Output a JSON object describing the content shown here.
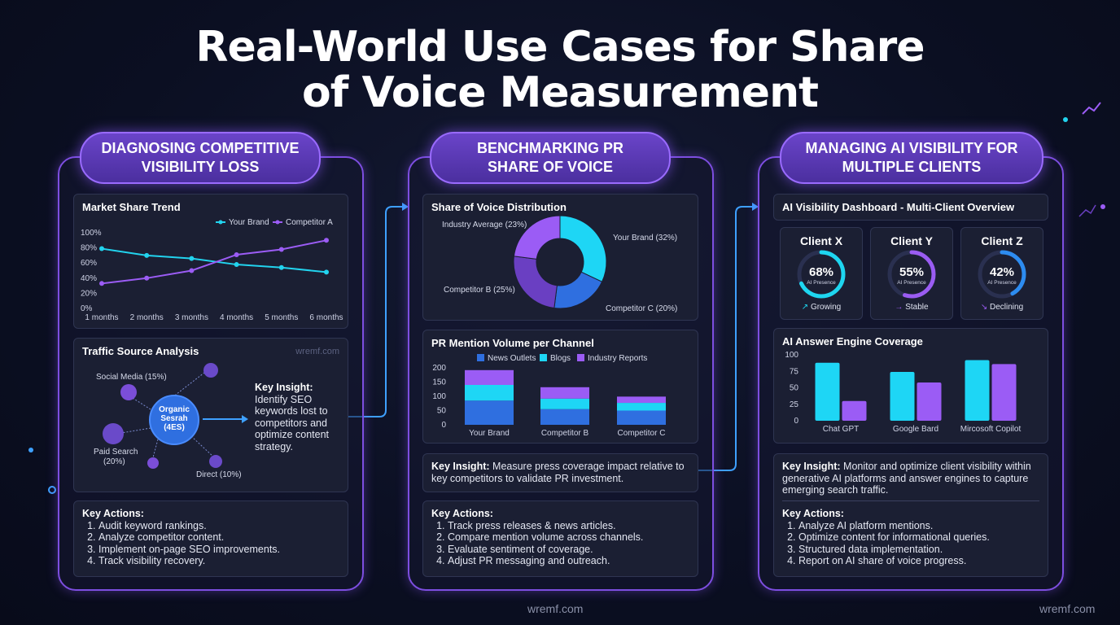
{
  "title_line1": "Real-World Use Cases for Share",
  "title_line2": "of Voice Measurement",
  "watermark": "wremf.com",
  "columns": [
    {
      "header_line1": "DIAGNOSING COMPETITIVE",
      "header_line2": "VISIBILITY LOSS",
      "market_share": {
        "title": "Market Share Trend",
        "legend": [
          "Your Brand",
          "Competitor A"
        ],
        "y_ticks": [
          "100%",
          "80%",
          "60%",
          "40%",
          "20%",
          "0%"
        ],
        "x_ticks": [
          "1 months",
          "2 months",
          "3 months",
          "4 months",
          "5 months",
          "6 months"
        ]
      },
      "traffic": {
        "title": "Traffic Source Analysis",
        "center_line1": "Organic",
        "center_line2": "Sesrah",
        "center_line3": "(4ES)",
        "social": "Social Media (15%)",
        "paid_line1": "Paid Search",
        "paid_line2": "(20%)",
        "direct": "Direct (10%)",
        "insight_label": "Key Insight:",
        "insight_text": "Identify SEO keywords lost to competitors and optimize content strategy."
      },
      "actions": {
        "heading": "Key Actions:",
        "items": [
          "Audit keyword rankings.",
          "Analyze competitor content.",
          "Implement on-page SEO improvements.",
          "Track visibility recovery."
        ]
      }
    },
    {
      "header_line1": "BENCHMARKING PR",
      "header_line2": "SHARE OF VOICE",
      "donut": {
        "title": "Share of Voice Distribution",
        "labels": [
          "Industry Average (23%)",
          "Your Brand (32%)",
          "Competitor B (25%)",
          "Competitor C (20%)"
        ]
      },
      "pr_volume": {
        "title": "PR Mention Volume per Channel",
        "legend": [
          "News Outlets",
          "Blogs",
          "Industry Reports"
        ],
        "y_ticks": [
          "200",
          "150",
          "100",
          "50",
          "0"
        ]
      },
      "insight": {
        "label": "Key Insight:",
        "text": "Measure press coverage impact relative to key competitors to validate PR investment."
      },
      "actions": {
        "heading": "Key Actions:",
        "items": [
          "Track press releases & news articles.",
          "Compare mention volume across channels.",
          "Evaluate sentiment of coverage.",
          "Adjust PR messaging and outreach."
        ]
      }
    },
    {
      "header_line1": "MANAGING AI VISIBILITY FOR",
      "header_line2": "MULTIPLE CLIENTS",
      "dashboard_title": "AI Visibility Dashboard - Multi-Client Overview",
      "gauge_sublabel": "AI Presence",
      "clients": [
        {
          "name": "Client X",
          "percent": "68%",
          "value": 68,
          "trend": "Growing",
          "trend_icon": "↗",
          "color": "#1ed6f0"
        },
        {
          "name": "Client Y",
          "percent": "55%",
          "value": 55,
          "trend": "Stable",
          "trend_icon": "→",
          "color": "#9a5cf2"
        },
        {
          "name": "Client Z",
          "percent": "42%",
          "value": 42,
          "trend": "Declining",
          "trend_icon": "↘",
          "color": "#2d8cf0"
        }
      ],
      "coverage": {
        "title": "AI Answer Engine Coverage",
        "y_ticks": [
          "100",
          "75",
          "50",
          "25",
          "0"
        ]
      },
      "insight": {
        "label": "Key Insight:",
        "text": "Monitor and optimize client visibility within generative AI platforms and answer engines to capture emerging search traffic."
      },
      "actions": {
        "heading": "Key Actions:",
        "items": [
          "Analyze AI platform mentions.",
          "Optimize content for informational queries.",
          "Structured data implementation.",
          "Report on AI share of voice progress."
        ]
      }
    }
  ],
  "chart_data": [
    {
      "type": "line",
      "title": "Market Share Trend",
      "x": [
        "1 months",
        "2 months",
        "3 months",
        "4 months",
        "5 months",
        "6 months"
      ],
      "ylim": [
        0,
        100
      ],
      "series": [
        {
          "name": "Your Brand",
          "values": [
            79,
            70,
            66,
            58,
            54,
            48
          ],
          "color": "#22d3ee"
        },
        {
          "name": "Competitor A",
          "values": [
            33,
            40,
            50,
            71,
            78,
            90
          ],
          "color": "#9b5cf5"
        }
      ]
    },
    {
      "type": "pie",
      "title": "Share of Voice Distribution",
      "slices": [
        {
          "name": "Your Brand",
          "value": 32,
          "color": "#1ed6f5"
        },
        {
          "name": "Competitor C",
          "value": 20,
          "color": "#2f6fe0"
        },
        {
          "name": "Competitor B",
          "value": 25,
          "color": "#6a3fc2"
        },
        {
          "name": "Industry Average",
          "value": 23,
          "color": "#9b5cf5"
        }
      ]
    },
    {
      "type": "bar",
      "title": "PR Mention Volume per Channel",
      "categories": [
        "Your Brand",
        "Competitor B",
        "Competitor C"
      ],
      "ylim": [
        0,
        200
      ],
      "series": [
        {
          "name": "News Outlets",
          "values": [
            85,
            55,
            50
          ],
          "color": "#2f6fe0"
        },
        {
          "name": "Blogs",
          "values": [
            55,
            37,
            27
          ],
          "color": "#1ed6f5"
        },
        {
          "name": "Industry Reports",
          "values": [
            52,
            40,
            22
          ],
          "color": "#9b5cf5"
        }
      ]
    },
    {
      "type": "bar",
      "title": "AI Answer Engine Coverage",
      "categories": [
        "Chat GPT",
        "Google Bard",
        "Mircosoft Copilot"
      ],
      "ylim": [
        0,
        100
      ],
      "series": [
        {
          "name": "",
          "values": [
            88,
            74,
            92
          ],
          "color": "#1ed6f5"
        },
        {
          "name": "",
          "values": [
            30,
            58,
            86
          ],
          "color": "#9b5cf5"
        }
      ]
    }
  ]
}
